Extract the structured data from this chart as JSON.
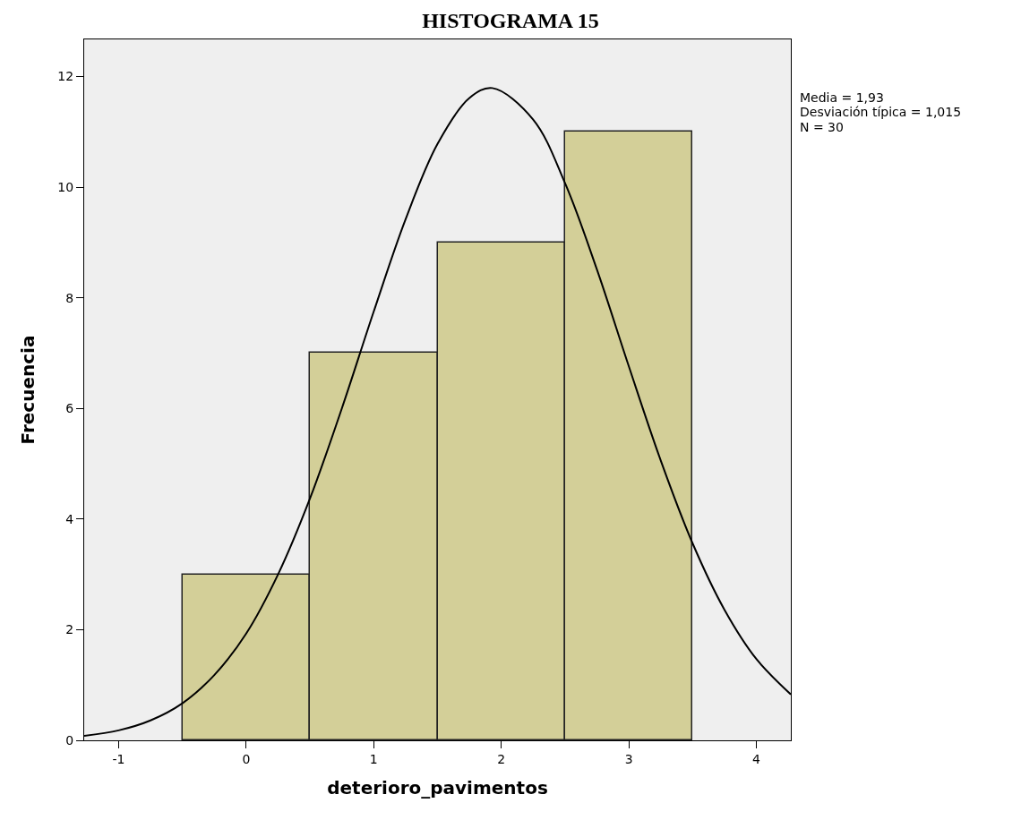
{
  "chart_data": {
    "type": "histogram",
    "title": "HISTOGRAMA 15",
    "xlabel": "deterioro_pavimentos",
    "ylabel": "Frecuencia",
    "bins": [
      -0.5,
      0.5,
      1.5,
      2.5,
      3.5
    ],
    "values": [
      3,
      7,
      9,
      11
    ],
    "color": "#d3cf98",
    "series": [
      {
        "type": "line",
        "color": "#000000",
        "x": [
          -1.27,
          -1,
          -0.75,
          -0.5,
          -0.25,
          0,
          0.25,
          0.5,
          0.75,
          1,
          1.25,
          1.5,
          1.75,
          1.93,
          2.25,
          2.5,
          2.75,
          3,
          3.25,
          3.5,
          3.75,
          4,
          4.27
        ],
        "values": [
          0.08,
          0.18,
          0.36,
          0.67,
          1.18,
          1.93,
          3.0,
          4.37,
          6.0,
          7.75,
          9.42,
          10.78,
          11.61,
          11.79,
          11.22,
          10.07,
          8.51,
          6.76,
          5.06,
          3.56,
          2.36,
          1.47,
          0.83
        ]
      }
    ],
    "xlim": [
      -1.27,
      4.27
    ],
    "xticks": [
      -1,
      0,
      1,
      2,
      3,
      4
    ],
    "ylim": [
      0,
      12.67
    ],
    "yticks": [
      0,
      2,
      4,
      6,
      8,
      10,
      12
    ],
    "grid": false,
    "marker": "none",
    "line_style": "solid",
    "annotations": [
      "Media = 1,93",
      "Desviación típica = 1,015",
      "N = 30"
    ]
  }
}
